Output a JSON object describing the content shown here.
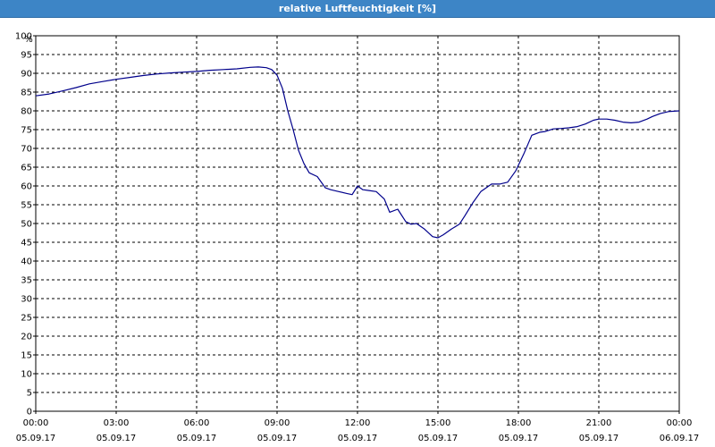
{
  "window": {
    "title": "relative Luftfeuchtigkeit [%]",
    "title_color": "#ffffff",
    "titlebar_color": "#3d85c6"
  },
  "chart_data": {
    "type": "line",
    "title": "relative Luftfeuchtigkeit [%]",
    "ylabel": "%",
    "xlabel": "",
    "ylim": [
      0,
      100
    ],
    "yticks": [
      0,
      5,
      10,
      15,
      20,
      25,
      30,
      35,
      40,
      45,
      50,
      55,
      60,
      65,
      70,
      75,
      80,
      85,
      90,
      95,
      100
    ],
    "xlim_hours": [
      0,
      24
    ],
    "xticks": [
      {
        "hour": 0,
        "time": "00:00",
        "date": "05.09.17"
      },
      {
        "hour": 3,
        "time": "03:00",
        "date": "05.09.17"
      },
      {
        "hour": 6,
        "time": "06:00",
        "date": "05.09.17"
      },
      {
        "hour": 9,
        "time": "09:00",
        "date": "05.09.17"
      },
      {
        "hour": 12,
        "time": "12:00",
        "date": "05.09.17"
      },
      {
        "hour": 15,
        "time": "15:00",
        "date": "05.09.17"
      },
      {
        "hour": 18,
        "time": "18:00",
        "date": "05.09.17"
      },
      {
        "hour": 21,
        "time": "21:00",
        "date": "05.09.17"
      },
      {
        "hour": 24,
        "time": "00:00",
        "date": "06.09.17"
      }
    ],
    "grid": true,
    "grid_style": "dashed",
    "line_color": "#00008b",
    "series": [
      {
        "x_hours": [
          0,
          0.5,
          1,
          1.5,
          2,
          2.5,
          3,
          3.5,
          4,
          4.5,
          5,
          5.5,
          6,
          6.5,
          7,
          7.5,
          8,
          8.3,
          8.6,
          8.8,
          9,
          9.2,
          9.4,
          9.6,
          9.8,
          10,
          10.2,
          10.5,
          10.8,
          11,
          11.3,
          11.6,
          11.8,
          12,
          12.2,
          12.4,
          12.7,
          13,
          13.2,
          13.5,
          13.8,
          14,
          14.2,
          14.5,
          14.8,
          15,
          15.2,
          15.5,
          15.8,
          16,
          16.3,
          16.6,
          17,
          17.3,
          17.6,
          17.9,
          18.2,
          18.5,
          18.8,
          19,
          19.3,
          19.6,
          19.9,
          20.2,
          20.5,
          20.8,
          21,
          21.3,
          21.6,
          21.9,
          22.2,
          22.5,
          22.8,
          23,
          23.3,
          23.6,
          23.8,
          24
        ],
        "y": [
          84,
          84.5,
          85.3,
          86.2,
          87.2,
          87.8,
          88.4,
          88.9,
          89.4,
          89.8,
          90.1,
          90.3,
          90.5,
          90.8,
          91,
          91.2,
          91.6,
          91.7,
          91.5,
          91,
          89.5,
          86,
          80,
          75,
          69.5,
          66,
          63.5,
          62.5,
          59.5,
          59,
          58.5,
          58,
          57.7,
          60,
          59,
          58.8,
          58.5,
          56.5,
          53,
          53.8,
          50.5,
          49.8,
          50,
          48.5,
          46.5,
          46.2,
          47,
          48.5,
          49.8,
          52,
          55.5,
          58.5,
          60.5,
          60.5,
          61,
          64,
          68.5,
          73.5,
          74.3,
          74.5,
          75.2,
          75.3,
          75.5,
          75.8,
          76.5,
          77.5,
          77.8,
          77.8,
          77.5,
          77,
          76.8,
          77,
          77.8,
          78.5,
          79.3,
          79.8,
          79.9,
          80
        ]
      }
    ]
  }
}
